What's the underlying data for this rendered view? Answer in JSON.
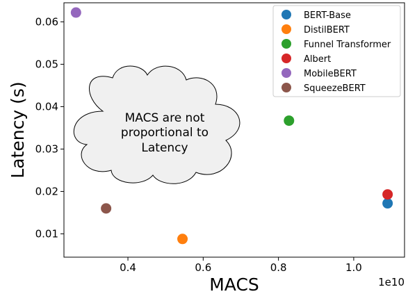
{
  "chart_data": {
    "type": "scatter",
    "xlabel": "MACS",
    "ylabel": "Latency (s)",
    "x_offset_text": "1e10",
    "xlim": [
      2.3,
      11.35
    ],
    "ylim": [
      0.0045,
      0.0645
    ],
    "x_ticks": [
      {
        "value": 4,
        "label": "0.4"
      },
      {
        "value": 6,
        "label": "0.6"
      },
      {
        "value": 8,
        "label": "0.8"
      },
      {
        "value": 10,
        "label": "1.0"
      }
    ],
    "y_ticks": [
      {
        "value": 0.01,
        "label": "0.01"
      },
      {
        "value": 0.02,
        "label": "0.02"
      },
      {
        "value": 0.03,
        "label": "0.03"
      },
      {
        "value": 0.04,
        "label": "0.04"
      },
      {
        "value": 0.05,
        "label": "0.05"
      },
      {
        "value": 0.06,
        "label": "0.06"
      }
    ],
    "series": [
      {
        "name": "BERT-Base",
        "color": "#1f77b4",
        "x": 10.9,
        "y": 0.0172
      },
      {
        "name": "DistilBERT",
        "color": "#ff7f0e",
        "x": 5.45,
        "y": 0.0088
      },
      {
        "name": "Funnel Transformer",
        "color": "#2ca02c",
        "x": 8.28,
        "y": 0.0367
      },
      {
        "name": "Albert",
        "color": "#d62728",
        "x": 10.9,
        "y": 0.0193
      },
      {
        "name": "MobileBERT",
        "color": "#9467bd",
        "x": 2.62,
        "y": 0.0622
      },
      {
        "name": "SqueezeBERT",
        "color": "#8c564b",
        "x": 3.42,
        "y": 0.016
      }
    ],
    "legend_position": "top-right",
    "grid": false,
    "annotation": {
      "shape": "cloud",
      "lines": [
        "MACS are not",
        "proportional to",
        "Latency"
      ]
    }
  }
}
